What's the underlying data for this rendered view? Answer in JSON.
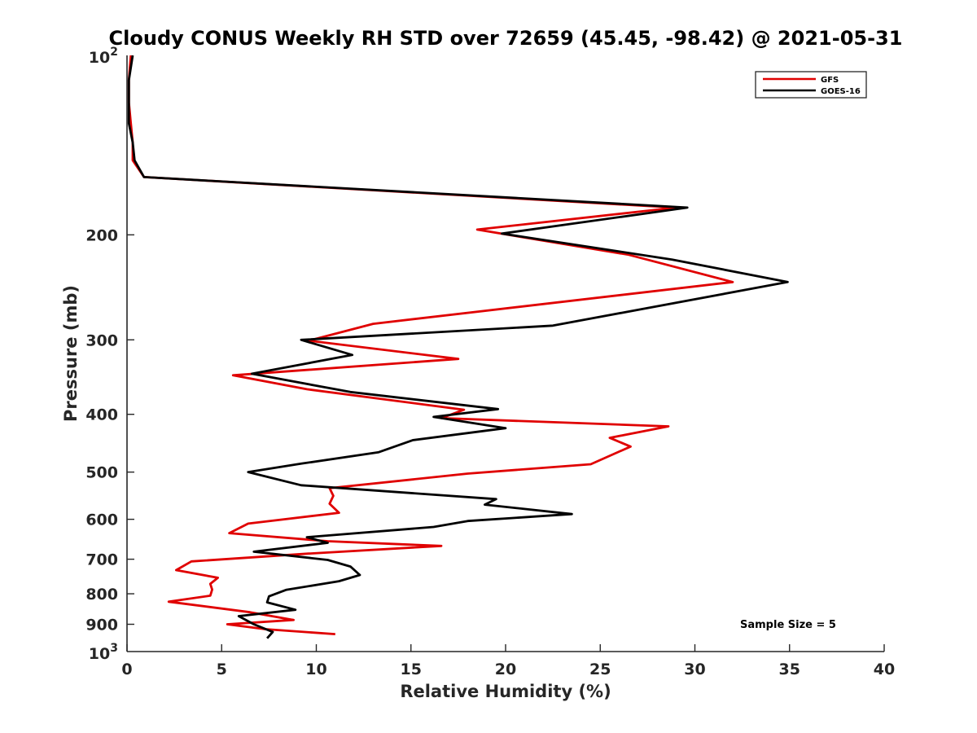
{
  "chart_data": {
    "type": "line",
    "title": "Cloudy CONUS Weekly RH STD over 72659 (45.45, -98.42) @ 2021-05-31",
    "xlabel": "Relative Humidity (%)",
    "ylabel": "Pressure (mb)",
    "xlim": [
      0,
      40
    ],
    "ylim": [
      100,
      1000
    ],
    "y_scale": "log",
    "y_reversed": true,
    "x_ticks": [
      "0",
      "5",
      "10",
      "15",
      "20",
      "25",
      "30",
      "35",
      "40"
    ],
    "y_tick_values": [
      200,
      300,
      400,
      500,
      600,
      700,
      800,
      900
    ],
    "y_ticks": [
      "200",
      "300",
      "400",
      "500",
      "600",
      "700",
      "800",
      "900"
    ],
    "y_end_labels": {
      "top_base": "10",
      "top_exp": "2",
      "bottom_base": "10",
      "bottom_exp": "3"
    },
    "legend_position": "top-right",
    "grid": false,
    "annotation": "Sample Size = 5",
    "series": [
      {
        "name": "GFS",
        "color": "#e00000",
        "points": [
          [
            0.2,
            100
          ],
          [
            0.1,
            110
          ],
          [
            0.1,
            120
          ],
          [
            0.2,
            130
          ],
          [
            0.3,
            140
          ],
          [
            0.3,
            150
          ],
          [
            0.9,
            160
          ],
          [
            29.0,
            180
          ],
          [
            18.5,
            196
          ],
          [
            26.5,
            216
          ],
          [
            32.0,
            240
          ],
          [
            13.0,
            282
          ],
          [
            9.6,
            301
          ],
          [
            17.5,
            323
          ],
          [
            5.6,
            344
          ],
          [
            9.5,
            363
          ],
          [
            17.8,
            393
          ],
          [
            16.6,
            406
          ],
          [
            28.6,
            419
          ],
          [
            25.5,
            438
          ],
          [
            26.6,
            453
          ],
          [
            24.5,
            485
          ],
          [
            18.0,
            503
          ],
          [
            10.7,
            532
          ],
          [
            10.9,
            548
          ],
          [
            10.7,
            565
          ],
          [
            11.2,
            585
          ],
          [
            6.4,
            610
          ],
          [
            5.4,
            633
          ],
          [
            10.6,
            653
          ],
          [
            16.6,
            665
          ],
          [
            9.6,
            685
          ],
          [
            3.4,
            706
          ],
          [
            2.6,
            730
          ],
          [
            4.8,
            752
          ],
          [
            4.4,
            770
          ],
          [
            4.5,
            787
          ],
          [
            4.4,
            806
          ],
          [
            2.2,
            825
          ],
          [
            6.5,
            859
          ],
          [
            8.8,
            885
          ],
          [
            5.3,
            900
          ],
          [
            7.3,
            917
          ],
          [
            11.0,
            935
          ]
        ]
      },
      {
        "name": "GOES-16",
        "color": "#000000",
        "points": [
          [
            0.3,
            100
          ],
          [
            0.1,
            110
          ],
          [
            0.1,
            120
          ],
          [
            0.1,
            130
          ],
          [
            0.3,
            140
          ],
          [
            0.4,
            150
          ],
          [
            0.9,
            160
          ],
          [
            29.6,
            180
          ],
          [
            19.8,
            199
          ],
          [
            28.8,
            220
          ],
          [
            34.9,
            240
          ],
          [
            22.5,
            284
          ],
          [
            9.2,
            300
          ],
          [
            11.9,
            318
          ],
          [
            6.6,
            342
          ],
          [
            11.8,
            367
          ],
          [
            19.6,
            392
          ],
          [
            16.2,
            404
          ],
          [
            20.0,
            422
          ],
          [
            15.1,
            442
          ],
          [
            13.3,
            463
          ],
          [
            9.2,
            484
          ],
          [
            6.4,
            500
          ],
          [
            9.2,
            526
          ],
          [
            19.5,
            555
          ],
          [
            18.9,
            567
          ],
          [
            23.5,
            588
          ],
          [
            18.0,
            604
          ],
          [
            16.2,
            618
          ],
          [
            9.5,
            643
          ],
          [
            10.6,
            657
          ],
          [
            6.7,
            680
          ],
          [
            10.6,
            702
          ],
          [
            11.8,
            720
          ],
          [
            12.3,
            744
          ],
          [
            11.2,
            762
          ],
          [
            8.4,
            788
          ],
          [
            7.5,
            808
          ],
          [
            7.4,
            827
          ],
          [
            8.9,
            851
          ],
          [
            5.9,
            872
          ],
          [
            6.7,
            900
          ],
          [
            7.7,
            927
          ],
          [
            7.4,
            950
          ]
        ]
      }
    ]
  }
}
